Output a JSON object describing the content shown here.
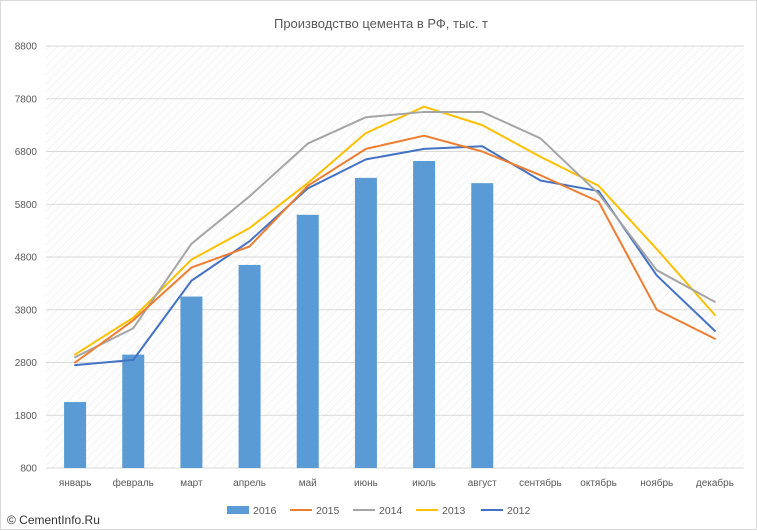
{
  "chart_data": {
    "type": "bar",
    "title": "Производство цемента в РФ, тыс. т",
    "categories": [
      "январь",
      "февраль",
      "март",
      "апрель",
      "май",
      "июнь",
      "июль",
      "август",
      "сентябрь",
      "октябрь",
      "ноябрь",
      "декабрь"
    ],
    "ylim": [
      800,
      8800
    ],
    "yticks": [
      800,
      1800,
      2800,
      3800,
      4800,
      5800,
      6800,
      7800,
      8800
    ],
    "grid": "diagonal-hatched background",
    "legend_position": "bottom",
    "series": [
      {
        "name": "2016",
        "kind": "bar",
        "color": "#5b9bd5",
        "values": [
          2050,
          2950,
          4050,
          4650,
          5600,
          6300,
          6620,
          6200,
          null,
          null,
          null,
          null
        ]
      },
      {
        "name": "2015",
        "kind": "line",
        "color": "#ed7d31",
        "values": [
          2800,
          3600,
          4600,
          5000,
          6150,
          6850,
          7100,
          6800,
          6350,
          5850,
          3800,
          3250
        ]
      },
      {
        "name": "2014",
        "kind": "line",
        "color": "#a5a5a5",
        "values": [
          2900,
          3450,
          5050,
          5950,
          6950,
          7450,
          7550,
          7550,
          7050,
          6000,
          4550,
          3950
        ]
      },
      {
        "name": "2013",
        "kind": "line",
        "color": "#ffc000",
        "values": [
          2950,
          3650,
          4750,
          5350,
          6200,
          7150,
          7650,
          7300,
          6700,
          6150,
          4950,
          3700
        ]
      },
      {
        "name": "2012",
        "kind": "line",
        "color": "#4472c4",
        "values": [
          2750,
          2850,
          4350,
          5100,
          6100,
          6650,
          6850,
          6900,
          6250,
          6050,
          4450,
          3400
        ]
      }
    ]
  },
  "watermark": {
    "icon": "copyright-icon",
    "text": "© CementInfo.Ru"
  }
}
